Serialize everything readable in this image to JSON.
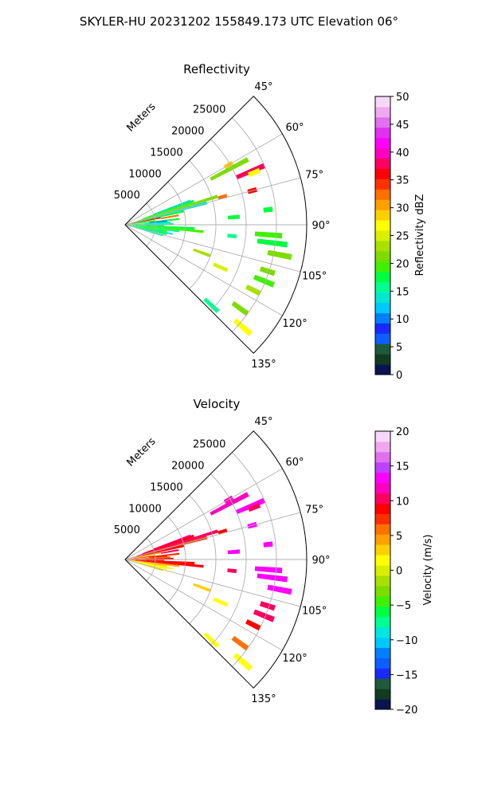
{
  "suptitle": "SKYLER-HU  20231202  155849.173 UTC Elevation 06°",
  "chart_data": [
    {
      "type": "heatmap",
      "title": "Reflectivity",
      "radial_label": "Meters",
      "range_ticks": [
        "5000",
        "10000",
        "15000",
        "20000",
        "25000"
      ],
      "range_tick_values": [
        5000,
        10000,
        15000,
        20000,
        25000
      ],
      "azimuth_ticks": [
        "45°",
        "60°",
        "75°",
        "90°",
        "105°",
        "120°",
        "135°"
      ],
      "azimuth_tick_values": [
        45,
        60,
        75,
        90,
        105,
        120,
        135
      ],
      "azimuth_range": [
        45,
        135
      ],
      "range_max": 30000,
      "grid": true,
      "colorbar": {
        "label": "Reflectivity dBZ",
        "ticks": [
          "0",
          "5",
          "10",
          "15",
          "20",
          "25",
          "30",
          "35",
          "40",
          "45",
          "50"
        ],
        "range": [
          0,
          50
        ],
        "colors": [
          "#0a1450",
          "#123c20",
          "#1e5a3c",
          "#0b5fff",
          "#1a2aff",
          "#0080ff",
          "#00c8ff",
          "#00e8d0",
          "#00ff90",
          "#00ff40",
          "#40f000",
          "#7ddc00",
          "#a8e000",
          "#d8f000",
          "#ffff00",
          "#ffd000",
          "#ffa000",
          "#ff7000",
          "#ff3000",
          "#ff0000",
          "#ff0060",
          "#ff00c0",
          "#ff00ff",
          "#e030f0",
          "#e070f0",
          "#f0a8f0",
          "#f8d8f8"
        ]
      },
      "cells": [
        {
          "az": 62,
          "r": [
            16000,
            23000
          ],
          "v": 22
        },
        {
          "az": 67,
          "r": [
            20000,
            25000
          ],
          "v": 38
        },
        {
          "az": 70,
          "r": [
            5000,
            11500
          ],
          "v": 12
        },
        {
          "az": 71,
          "r": [
            3000,
            12000
          ],
          "v": 18
        },
        {
          "az": 73,
          "r": [
            2000,
            16000
          ],
          "v": 22
        },
        {
          "az": 75,
          "r": [
            1000,
            14000
          ],
          "v": 14
        },
        {
          "az": 77,
          "r": [
            1000,
            10000
          ],
          "v": 17
        },
        {
          "az": 79,
          "r": [
            500,
            6000
          ],
          "v": 36
        },
        {
          "az": 80,
          "r": [
            6000,
            9000
          ],
          "v": 33
        },
        {
          "az": 82,
          "r": [
            500,
            5000
          ],
          "v": 19
        },
        {
          "az": 84,
          "r": [
            500,
            9000
          ],
          "v": 17
        },
        {
          "az": 85,
          "r": [
            4000,
            7000
          ],
          "v": 10
        },
        {
          "az": 87,
          "r": [
            500,
            7500
          ],
          "v": 14
        },
        {
          "az": 89,
          "r": [
            500,
            8000
          ],
          "v": 16
        },
        {
          "az": 91,
          "r": [
            500,
            6500
          ],
          "v": 13
        },
        {
          "az": 93,
          "r": [
            500,
            11500
          ],
          "v": 17
        },
        {
          "az": 95,
          "r": [
            500,
            13000
          ],
          "v": 20
        },
        {
          "az": 97,
          "r": [
            500,
            9000
          ],
          "v": 15
        },
        {
          "az": 99,
          "r": [
            500,
            7000
          ],
          "v": 19
        },
        {
          "az": 101,
          "r": [
            500,
            8000
          ],
          "v": 14
        },
        {
          "az": 103,
          "r": [
            1000,
            7000
          ],
          "v": 18
        },
        {
          "az": 106,
          "r": [
            1500,
            6500
          ],
          "v": 13
        },
        {
          "az": 94,
          "r": [
            21500,
            26000
          ],
          "v": 19
        },
        {
          "az": 97,
          "r": [
            22000,
            27000
          ],
          "v": 17
        },
        {
          "az": 101,
          "r": [
            24000,
            28000
          ],
          "v": 21
        },
        {
          "az": 108,
          "r": [
            23500,
            26000
          ],
          "v": 22
        },
        {
          "az": 112,
          "r": [
            23000,
            26500
          ],
          "v": 20
        },
        {
          "az": 117,
          "r": [
            22500,
            25000
          ],
          "v": 24
        },
        {
          "az": 126,
          "r": [
            22000,
            25000
          ],
          "v": 21
        },
        {
          "az": 131,
          "r": [
            24000,
            27500
          ],
          "v": 26
        },
        {
          "az": 133,
          "r": [
            18000,
            21000
          ],
          "v": 16
        },
        {
          "az": 110,
          "r": [
            12000,
            15000
          ],
          "v": 24
        },
        {
          "az": 114,
          "r": [
            16000,
            18500
          ],
          "v": 25
        },
        {
          "az": 86,
          "r": [
            17000,
            19000
          ],
          "v": 17
        },
        {
          "az": 84,
          "r": [
            23000,
            24500
          ],
          "v": 18
        },
        {
          "az": 74,
          "r": [
            16000,
            17500
          ],
          "v": 33
        },
        {
          "az": 68,
          "r": [
            22000,
            24000
          ],
          "v": 26
        },
        {
          "az": 60,
          "r": [
            19000,
            20500
          ],
          "v": 28
        },
        {
          "az": 75,
          "r": [
            21000,
            22500
          ],
          "v": 37
        },
        {
          "az": 96,
          "r": [
            17000,
            18500
          ],
          "v": 15
        }
      ]
    },
    {
      "type": "heatmap",
      "title": "Velocity",
      "radial_label": "Meters",
      "range_ticks": [
        "5000",
        "10000",
        "15000",
        "20000",
        "25000"
      ],
      "range_tick_values": [
        5000,
        10000,
        15000,
        20000,
        25000
      ],
      "azimuth_ticks": [
        "45°",
        "60°",
        "75°",
        "90°",
        "105°",
        "120°",
        "135°"
      ],
      "azimuth_tick_values": [
        45,
        60,
        75,
        90,
        105,
        120,
        135
      ],
      "azimuth_range": [
        45,
        135
      ],
      "range_max": 30000,
      "grid": true,
      "colorbar": {
        "label": "Velocity (m/s)",
        "ticks": [
          "−20",
          "−15",
          "−10",
          "−5",
          "0",
          "5",
          "10",
          "15",
          "20"
        ],
        "range": [
          -20,
          20
        ],
        "colors": [
          "#0a1450",
          "#123c20",
          "#1e5a3c",
          "#1a2aff",
          "#0b5fff",
          "#0080ff",
          "#00c8ff",
          "#00e8e0",
          "#00ff90",
          "#00ff40",
          "#40f000",
          "#7ddc00",
          "#a8e000",
          "#d8f000",
          "#ffff00",
          "#ffd000",
          "#ffa000",
          "#ff7000",
          "#ff3000",
          "#ff0000",
          "#ff0060",
          "#ff00c0",
          "#ff00ff",
          "#c040ff",
          "#e070f0",
          "#f0a8f0",
          "#f8d8f8"
        ]
      },
      "cells": [
        {
          "az": 62,
          "r": [
            16000,
            23000
          ],
          "v": 12
        },
        {
          "az": 67,
          "r": [
            20000,
            25000
          ],
          "v": 13
        },
        {
          "az": 70,
          "r": [
            5000,
            11500
          ],
          "v": 12
        },
        {
          "az": 71,
          "r": [
            3000,
            12000
          ],
          "v": 9
        },
        {
          "az": 73,
          "r": [
            2000,
            16000
          ],
          "v": 10
        },
        {
          "az": 75,
          "r": [
            1000,
            14000
          ],
          "v": 8
        },
        {
          "az": 77,
          "r": [
            1000,
            10000
          ],
          "v": 9
        },
        {
          "az": 79,
          "r": [
            500,
            6000
          ],
          "v": 5
        },
        {
          "az": 80,
          "r": [
            6000,
            9000
          ],
          "v": 11
        },
        {
          "az": 82,
          "r": [
            500,
            5000
          ],
          "v": 4
        },
        {
          "az": 84,
          "r": [
            500,
            9000
          ],
          "v": 8
        },
        {
          "az": 85,
          "r": [
            4000,
            7000
          ],
          "v": 9
        },
        {
          "az": 87,
          "r": [
            500,
            7500
          ],
          "v": 6
        },
        {
          "az": 89,
          "r": [
            500,
            8000
          ],
          "v": 9
        },
        {
          "az": 91,
          "r": [
            500,
            6500
          ],
          "v": 7
        },
        {
          "az": 93,
          "r": [
            500,
            11500
          ],
          "v": 9
        },
        {
          "az": 95,
          "r": [
            500,
            13000
          ],
          "v": 9
        },
        {
          "az": 97,
          "r": [
            500,
            9000
          ],
          "v": 4
        },
        {
          "az": 99,
          "r": [
            500,
            7000
          ],
          "v": 3
        },
        {
          "az": 101,
          "r": [
            500,
            8000
          ],
          "v": 2
        },
        {
          "az": 103,
          "r": [
            1000,
            7000
          ],
          "v": 2
        },
        {
          "az": 106,
          "r": [
            1500,
            6500
          ],
          "v": 3
        },
        {
          "az": 94,
          "r": [
            21500,
            26000
          ],
          "v": 13
        },
        {
          "az": 97,
          "r": [
            22000,
            27000
          ],
          "v": 14
        },
        {
          "az": 101,
          "r": [
            24000,
            28000
          ],
          "v": 13
        },
        {
          "az": 108,
          "r": [
            23500,
            26000
          ],
          "v": 11
        },
        {
          "az": 112,
          "r": [
            23000,
            26500
          ],
          "v": 10
        },
        {
          "az": 117,
          "r": [
            22500,
            25000
          ],
          "v": 9
        },
        {
          "az": 126,
          "r": [
            22000,
            25000
          ],
          "v": 6
        },
        {
          "az": 131,
          "r": [
            24000,
            27500
          ],
          "v": 2
        },
        {
          "az": 133,
          "r": [
            18000,
            21000
          ],
          "v": 1
        },
        {
          "az": 110,
          "r": [
            12000,
            15000
          ],
          "v": 3
        },
        {
          "az": 114,
          "r": [
            16000,
            18500
          ],
          "v": 2
        },
        {
          "az": 86,
          "r": [
            17000,
            19000
          ],
          "v": 13
        },
        {
          "az": 84,
          "r": [
            23000,
            24500
          ],
          "v": 14
        },
        {
          "az": 74,
          "r": [
            16000,
            17500
          ],
          "v": 9
        },
        {
          "az": 68,
          "r": [
            22000,
            24000
          ],
          "v": 11
        },
        {
          "az": 60,
          "r": [
            19000,
            20500
          ],
          "v": 12
        },
        {
          "az": 75,
          "r": [
            21000,
            22500
          ],
          "v": 13
        },
        {
          "az": 96,
          "r": [
            17000,
            18500
          ],
          "v": 10
        }
      ]
    }
  ]
}
